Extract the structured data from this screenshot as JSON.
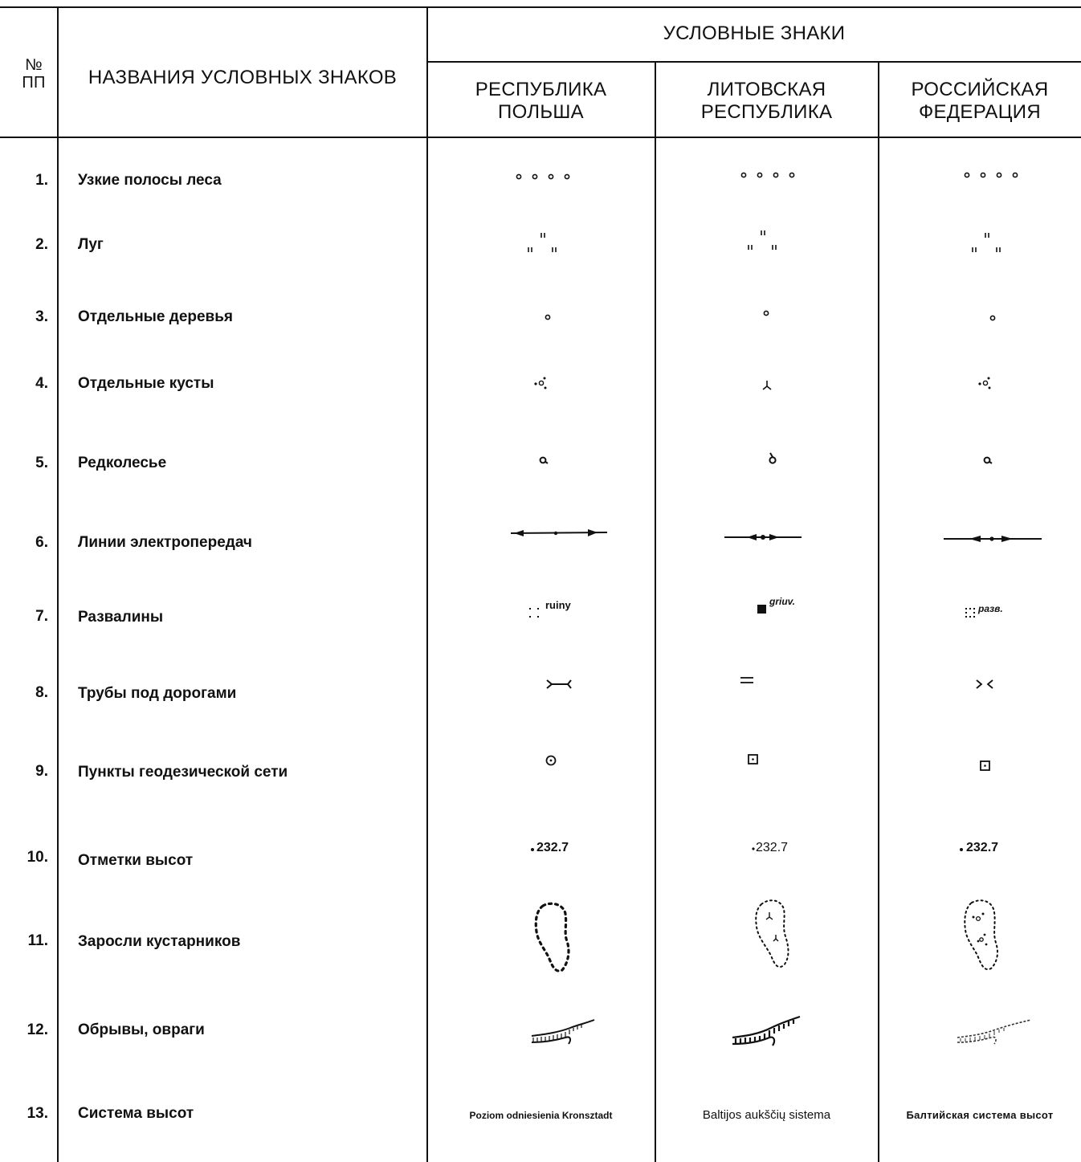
{
  "header": {
    "num_col": "№\nПП",
    "names_col": "НАЗВАНИЯ УСЛОВНЫХ ЗНАКОВ",
    "signs_title": "УСЛОВНЫЕ  ЗНАКИ",
    "poland": "РЕСПУБЛИКА\nПОЛЬША",
    "lithuania": "ЛИТОВСКАЯ\nРЕСПУБЛИКА",
    "russia": "РОССИЙСКАЯ\nФЕДЕРАЦИЯ"
  },
  "rows": [
    {
      "num": "1.",
      "name": "Узкие полосы леса"
    },
    {
      "num": "2.",
      "name": "Луг"
    },
    {
      "num": "3.",
      "name": "Отдельные деревья"
    },
    {
      "num": "4.",
      "name": "Отдельные кусты"
    },
    {
      "num": "5.",
      "name": "Редколесье"
    },
    {
      "num": "6.",
      "name": "Линии электропередач"
    },
    {
      "num": "7.",
      "name": "Развалины"
    },
    {
      "num": "8.",
      "name": "Трубы под дорогами"
    },
    {
      "num": "9.",
      "name": "Пункты геодезической сети"
    },
    {
      "num": "10.",
      "name": "Отметки высот"
    },
    {
      "num": "11.",
      "name": "Заросли кустарников"
    },
    {
      "num": "12.",
      "name": "Обрывы, овраги"
    },
    {
      "num": "13.",
      "name": "Система высот"
    }
  ],
  "ruins_labels": {
    "poland": "ruiny",
    "lithuania": "griuv.",
    "russia": "разв."
  },
  "elevation": {
    "poland": "232.7",
    "lithuania": "232.7",
    "russia": "232.7"
  },
  "height_system": {
    "poland": "Poziom odniesienia Kronsztadt",
    "lithuania": "Baltijos aukščių sistema",
    "russia": "Балтийская система высот"
  }
}
